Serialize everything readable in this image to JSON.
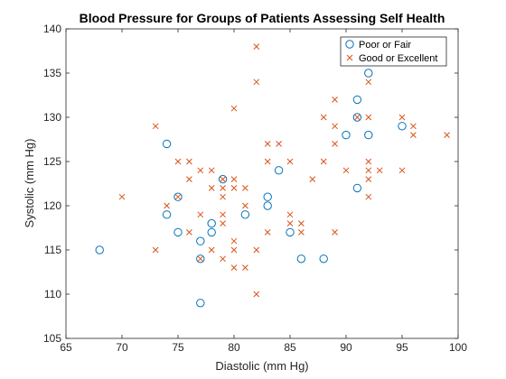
{
  "chart_data": {
    "type": "scatter",
    "title": "Blood Pressure for Groups of Patients Assessing Self Health",
    "xlabel": "Diastolic (mm Hg)",
    "ylabel": "Systolic (mm Hg)",
    "xlim": [
      65,
      100
    ],
    "ylim": [
      105,
      140
    ],
    "xticks": [
      "65",
      "70",
      "75",
      "80",
      "85",
      "90",
      "95",
      "100"
    ],
    "yticks": [
      "105",
      "110",
      "115",
      "120",
      "125",
      "130",
      "135",
      "140"
    ],
    "grid": false,
    "legend_position": "top-right",
    "series": [
      {
        "name": "Poor or Fair",
        "marker": "circle",
        "color": "#0072BD",
        "points": [
          [
            68,
            115
          ],
          [
            74,
            127
          ],
          [
            74,
            119
          ],
          [
            75,
            117
          ],
          [
            75,
            121
          ],
          [
            77,
            116
          ],
          [
            77,
            114
          ],
          [
            77,
            109
          ],
          [
            78,
            118
          ],
          [
            78,
            117
          ],
          [
            79,
            123
          ],
          [
            81,
            119
          ],
          [
            83,
            121
          ],
          [
            83,
            120
          ],
          [
            84,
            124
          ],
          [
            85,
            117
          ],
          [
            86,
            114
          ],
          [
            88,
            114
          ],
          [
            90,
            128
          ],
          [
            91,
            132
          ],
          [
            91,
            130
          ],
          [
            91,
            122
          ],
          [
            92,
            135
          ],
          [
            92,
            128
          ],
          [
            95,
            129
          ]
        ]
      },
      {
        "name": "Good or Excellent",
        "marker": "x",
        "color": "#D95319",
        "points": [
          [
            70,
            121
          ],
          [
            73,
            129
          ],
          [
            73,
            115
          ],
          [
            74,
            120
          ],
          [
            75,
            125
          ],
          [
            75,
            121
          ],
          [
            76,
            125
          ],
          [
            76,
            123
          ],
          [
            76,
            117
          ],
          [
            77,
            124
          ],
          [
            77,
            119
          ],
          [
            77,
            114
          ],
          [
            78,
            124
          ],
          [
            78,
            122
          ],
          [
            78,
            115
          ],
          [
            79,
            123
          ],
          [
            79,
            122
          ],
          [
            79,
            121
          ],
          [
            79,
            119
          ],
          [
            79,
            118
          ],
          [
            79,
            114
          ],
          [
            80,
            131
          ],
          [
            80,
            123
          ],
          [
            80,
            122
          ],
          [
            80,
            116
          ],
          [
            80,
            115
          ],
          [
            80,
            113
          ],
          [
            81,
            122
          ],
          [
            81,
            120
          ],
          [
            81,
            113
          ],
          [
            82,
            138
          ],
          [
            82,
            134
          ],
          [
            82,
            115
          ],
          [
            82,
            110
          ],
          [
            83,
            127
          ],
          [
            83,
            125
          ],
          [
            83,
            117
          ],
          [
            84,
            127
          ],
          [
            85,
            125
          ],
          [
            85,
            119
          ],
          [
            85,
            118
          ],
          [
            86,
            118
          ],
          [
            86,
            117
          ],
          [
            87,
            123
          ],
          [
            88,
            130
          ],
          [
            88,
            125
          ],
          [
            89,
            132
          ],
          [
            89,
            129
          ],
          [
            89,
            127
          ],
          [
            89,
            117
          ],
          [
            90,
            124
          ],
          [
            91,
            130
          ],
          [
            92,
            134
          ],
          [
            92,
            130
          ],
          [
            92,
            125
          ],
          [
            92,
            124
          ],
          [
            92,
            123
          ],
          [
            92,
            121
          ],
          [
            93,
            124
          ],
          [
            95,
            130
          ],
          [
            95,
            124
          ],
          [
            96,
            129
          ],
          [
            96,
            128
          ],
          [
            99,
            128
          ]
        ]
      }
    ]
  }
}
